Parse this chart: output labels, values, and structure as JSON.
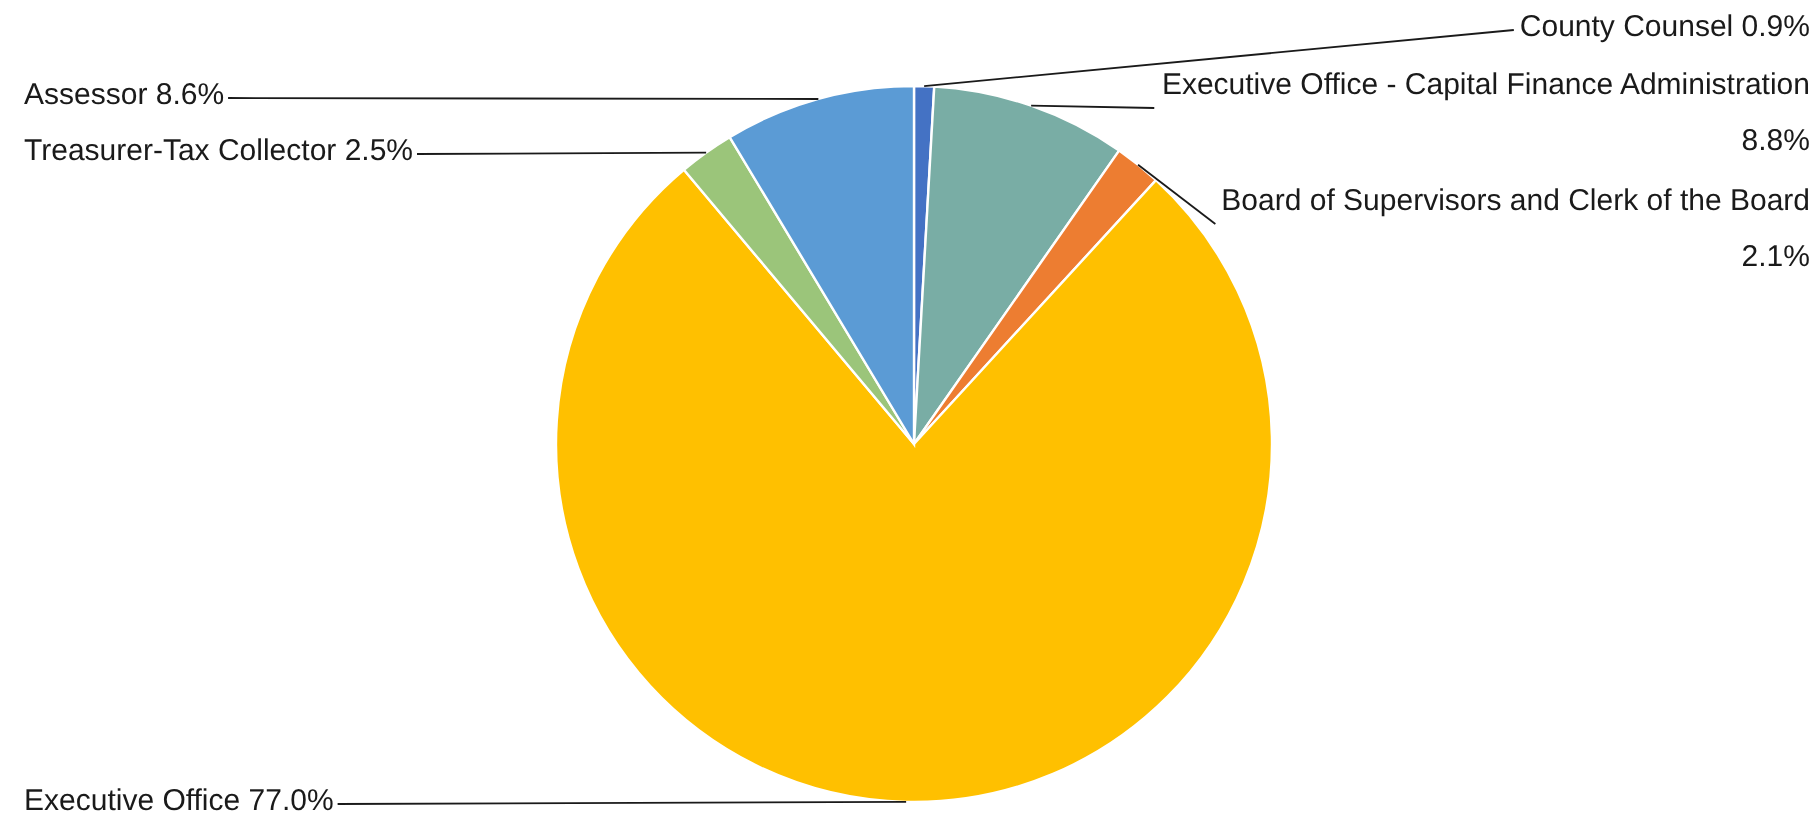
{
  "chart_data": {
    "type": "pie",
    "categories": [
      "County Counsel",
      "Executive Office - Capital Finance Administration",
      "Board of Supervisors and Clerk of the Board",
      "Executive Office",
      "Treasurer-Tax Collector",
      "Assessor"
    ],
    "values": [
      0.9,
      8.8,
      2.1,
      77.0,
      2.5,
      8.6
    ],
    "value_labels": [
      "0.9%",
      "8.8%",
      "2.1%",
      "77.0%",
      "2.5%",
      "8.6%"
    ],
    "colors": [
      "#4472c4",
      "#79ada5",
      "#ed7d31",
      "#ffc000",
      "#9bc57a",
      "#5b9bd5"
    ]
  }
}
